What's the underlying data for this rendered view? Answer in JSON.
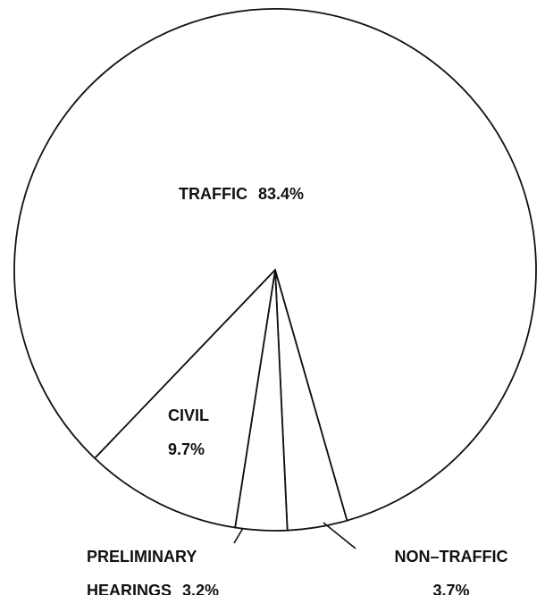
{
  "chart_data": {
    "type": "pie",
    "categories": [
      "NON–TRAFFIC",
      "PRELIMINARY HEARINGS",
      "CIVIL",
      "TRAFFIC"
    ],
    "values": [
      3.7,
      3.2,
      9.7,
      83.4
    ],
    "value_labels": [
      "3.7%",
      "3.2%",
      "9.7%",
      "83.4%"
    ],
    "color": "#ffffff"
  }
}
